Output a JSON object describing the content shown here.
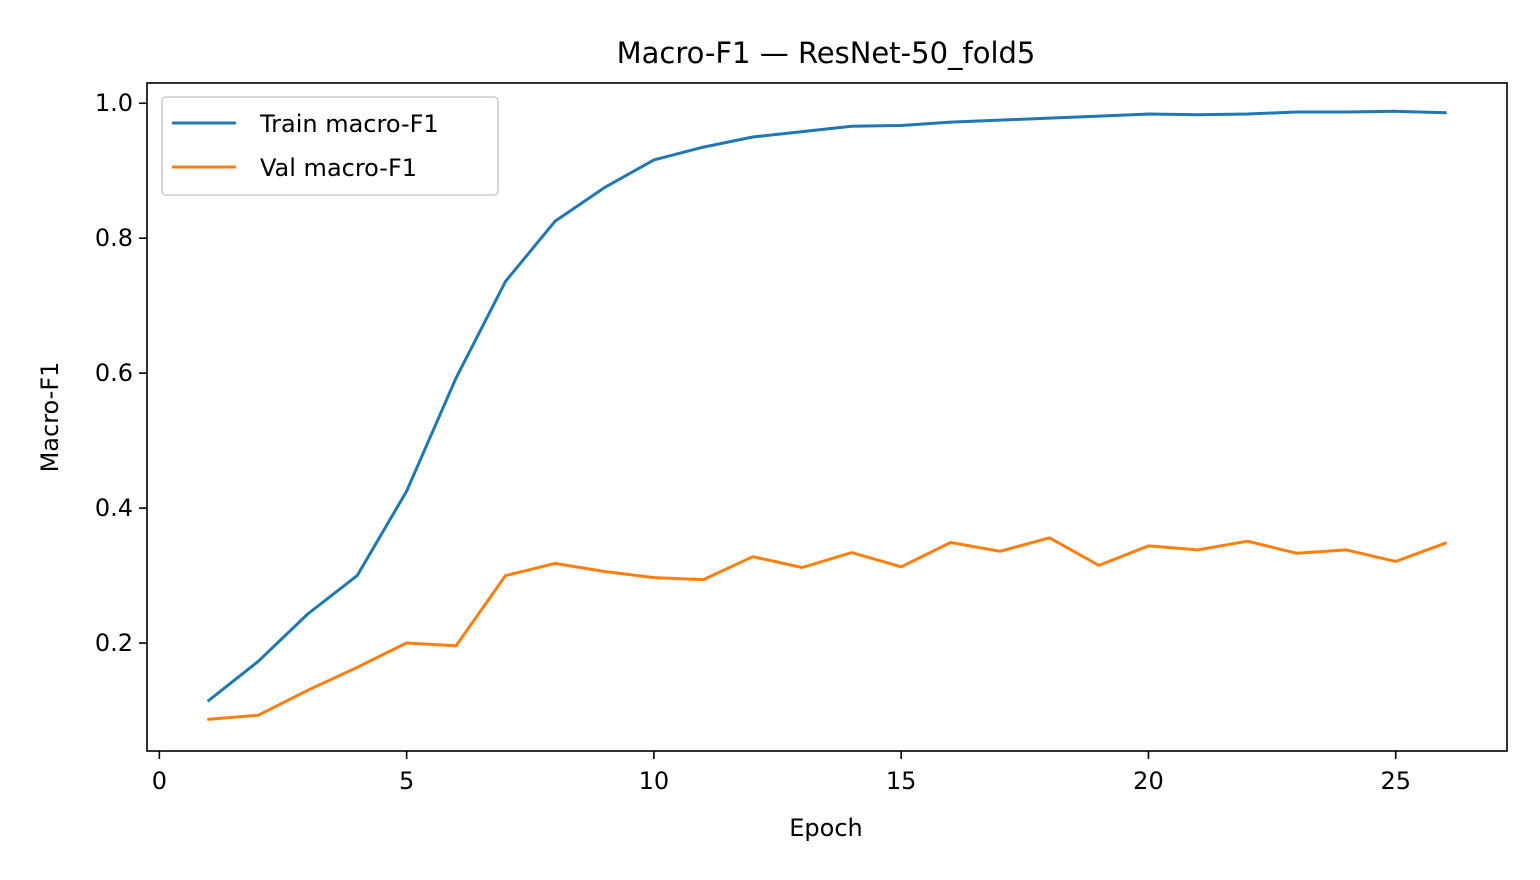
{
  "chart_data": {
    "type": "line",
    "title": "Macro-F1 — ResNet-50_fold5",
    "xlabel": "Epoch",
    "ylabel": "Macro-F1",
    "xlim": [
      -0.25,
      27.25
    ],
    "ylim": [
      0.04,
      1.03
    ],
    "x_ticks": [
      0,
      5,
      10,
      15,
      20,
      25
    ],
    "y_ticks": [
      0.2,
      0.4,
      0.6,
      0.8,
      1.0
    ],
    "x_tick_labels": [
      "0",
      "5",
      "10",
      "15",
      "20",
      "25"
    ],
    "y_tick_labels": [
      "0.2",
      "0.4",
      "0.6",
      "0.8",
      "1.0"
    ],
    "grid": false,
    "legend_position": "upper-left",
    "x": [
      1,
      2,
      3,
      4,
      5,
      6,
      7,
      8,
      9,
      10,
      11,
      12,
      13,
      14,
      15,
      16,
      17,
      18,
      19,
      20,
      21,
      22,
      23,
      24,
      25,
      26
    ],
    "series": [
      {
        "name": "Train macro-F1",
        "color": "#1f77b4",
        "values": [
          0.115,
          0.173,
          0.243,
          0.3,
          0.425,
          0.593,
          0.736,
          0.825,
          0.875,
          0.916,
          0.935,
          0.95,
          0.958,
          0.966,
          0.967,
          0.972,
          0.975,
          0.978,
          0.981,
          0.984,
          0.983,
          0.984,
          0.987,
          0.987,
          0.988,
          0.986
        ]
      },
      {
        "name": "Val macro-F1",
        "color": "#ff7f0e",
        "values": [
          0.087,
          0.093,
          0.13,
          0.164,
          0.2,
          0.196,
          0.3,
          0.318,
          0.306,
          0.297,
          0.294,
          0.328,
          0.312,
          0.334,
          0.313,
          0.349,
          0.336,
          0.356,
          0.315,
          0.344,
          0.338,
          0.351,
          0.333,
          0.338,
          0.321,
          0.348
        ]
      }
    ]
  }
}
